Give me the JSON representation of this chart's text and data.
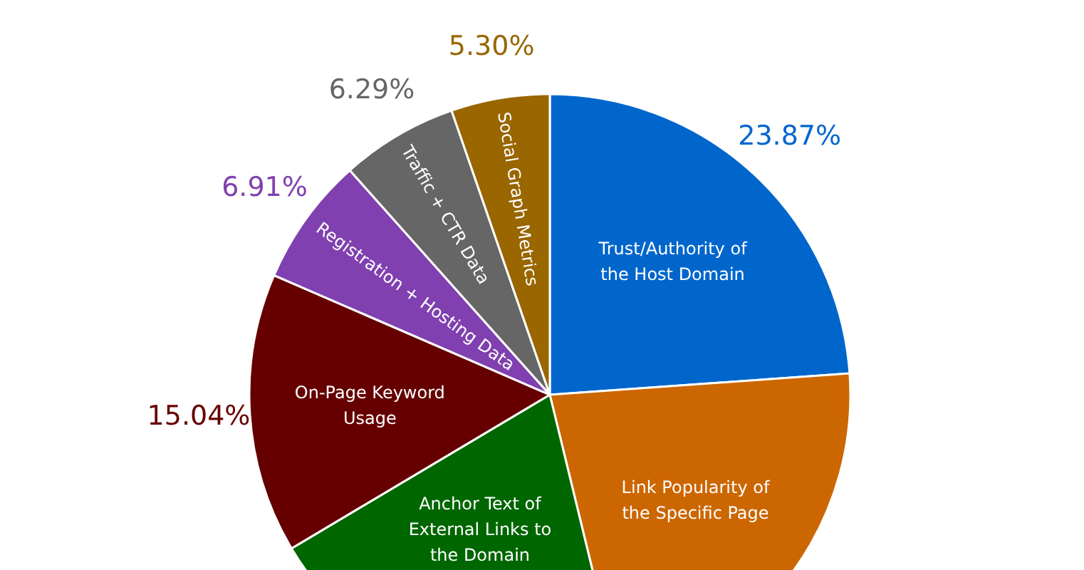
{
  "chart_data": {
    "type": "pie",
    "categories": [
      "Trust/Authority of the Host Domain",
      "Link Popularity of the Specific Page",
      "Anchor Text of External Links to the Domain",
      "On-Page Keyword Usage",
      "Registration + Hosting Data",
      "Traffic + CTR Data",
      "Social Graph Metrics"
    ],
    "values": [
      23.87,
      22.33,
      20.26,
      15.04,
      6.91,
      6.29,
      5.3
    ],
    "colors": [
      "#0066cc",
      "#cc6600",
      "#006600",
      "#660000",
      "#8040b0",
      "#666666",
      "#996600"
    ],
    "value_labels": [
      "23.87%",
      null,
      null,
      "15.04%",
      "6.91%",
      "6.29%",
      "5.30%"
    ]
  }
}
